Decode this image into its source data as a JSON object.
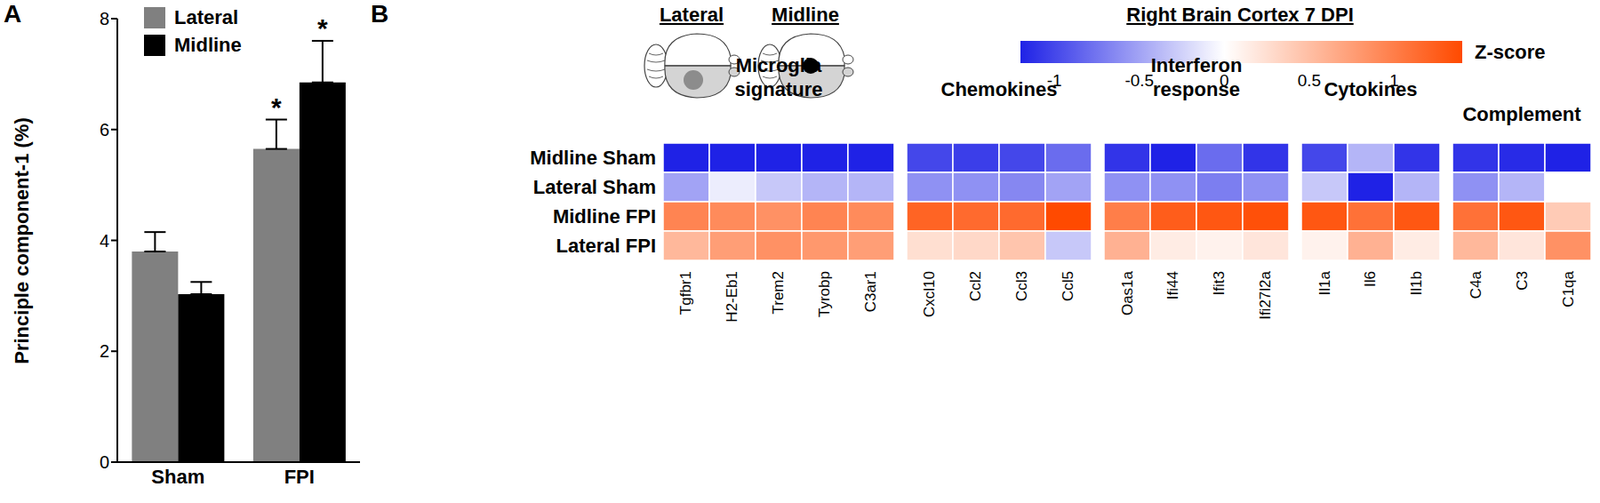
{
  "chart_data": [
    {
      "panel_label": "A",
      "type": "bar",
      "categories": [
        "Sham",
        "FPI"
      ],
      "series": [
        {
          "name": "Lateral",
          "color": "#808080",
          "values": [
            3.8,
            5.65
          ],
          "errors": [
            0.35,
            0.53
          ],
          "annotations": [
            null,
            "*"
          ]
        },
        {
          "name": "Midline",
          "color": "#000000",
          "values": [
            3.03,
            6.85
          ],
          "errors": [
            0.22,
            0.75
          ],
          "annotations": [
            null,
            "*"
          ]
        }
      ],
      "y_label": "Principle component-1 (%)",
      "ylim": [
        0,
        8
      ],
      "yticks": [
        0,
        2,
        4,
        6,
        8
      ],
      "legend": "top-left"
    },
    {
      "panel_label": "B",
      "type": "heatmap",
      "title": "Right Brain Cortex 7 DPI",
      "injury_sites": [
        "Lateral",
        "Midline"
      ],
      "rows": [
        "Midline Sham",
        "Lateral Sham",
        "Midline FPI",
        "Lateral FPI"
      ],
      "groups": [
        {
          "name": "Microglia signature",
          "columns": [
            "Tgfbr1",
            "H2-Eb1",
            "Trem2",
            "Tyrobp",
            "C3ar1"
          ]
        },
        {
          "name": "Chemokines",
          "columns": [
            "Cxcl10",
            "Ccl2",
            "Ccl3",
            "Ccl5"
          ]
        },
        {
          "name": "Interferon response",
          "columns": [
            "Oas1a",
            "Ifi44",
            "Ifit3",
            "Ifi27l2a"
          ]
        },
        {
          "name": "Cytokines",
          "columns": [
            "Il1a",
            "Il6",
            "Il1b"
          ]
        },
        {
          "name": "Complement",
          "columns": [
            "C4a",
            "C3",
            "C1qa"
          ]
        }
      ],
      "cells": [
        [
          -1.3,
          -1.3,
          -1.25,
          -1.3,
          -1.3,
          -1.0,
          -1.05,
          -1.0,
          -0.8,
          -1.1,
          -1.2,
          -0.8,
          -1.1,
          -1.0,
          -0.4,
          -1.1,
          -1.1,
          -1.15,
          -1.4
        ],
        [
          -0.5,
          -0.1,
          -0.3,
          -0.4,
          -0.4,
          -0.6,
          -0.6,
          -0.65,
          -0.5,
          -0.6,
          -0.6,
          -0.7,
          -0.6,
          -0.3,
          -1.3,
          -0.4,
          -0.6,
          -0.4,
          0.0
        ],
        [
          0.95,
          0.9,
          0.85,
          0.95,
          0.9,
          1.2,
          1.15,
          1.15,
          1.4,
          1.0,
          1.25,
          1.3,
          1.35,
          1.3,
          1.1,
          1.3,
          1.1,
          1.3,
          0.4
        ],
        [
          0.55,
          0.75,
          0.85,
          0.8,
          0.75,
          0.25,
          0.3,
          0.45,
          -0.3,
          0.6,
          0.15,
          0.1,
          0.2,
          0.1,
          0.6,
          0.15,
          0.55,
          0.2,
          0.85
        ]
      ],
      "colorbar": {
        "label": "Z-score",
        "range": [
          -1.2,
          1.4
        ],
        "ticks": [
          -1,
          -0.5,
          0,
          0.5,
          1
        ]
      },
      "colors": [
        "#1f22e6",
        "#ffffff",
        "#ff4a00"
      ]
    }
  ]
}
